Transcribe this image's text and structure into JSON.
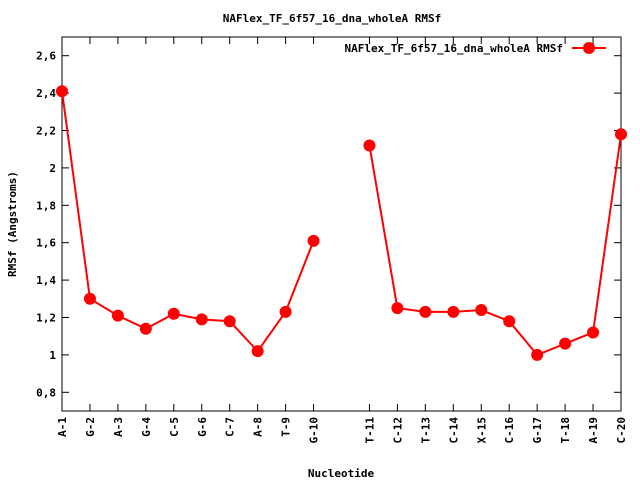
{
  "chart_data": {
    "type": "line",
    "title": "NAFlex_TF_6f57_16_dna_wholeA RMSf",
    "xlabel": "Nucleotide",
    "ylabel": "RMSf (Angstroms)",
    "ylim": [
      0.7,
      2.7
    ],
    "yticks": [
      "0,8",
      "1",
      "1,2",
      "1,4",
      "1,6",
      "1,8",
      "2",
      "2,2",
      "2,4",
      "2,6"
    ],
    "ytick_values": [
      0.8,
      1.0,
      1.2,
      1.4,
      1.6,
      1.8,
      2.0,
      2.2,
      2.4,
      2.6
    ],
    "grid": false,
    "legend": "top-right",
    "series_color": "#ff0000",
    "categories": [
      "A-1",
      "G-2",
      "A-3",
      "G-4",
      "C-5",
      "G-6",
      "C-7",
      "A-8",
      "T-9",
      "G-10",
      "T-11",
      "C-12",
      "T-13",
      "C-14",
      "X-15",
      "C-16",
      "G-17",
      "T-18",
      "A-19",
      "C-20"
    ],
    "x": [
      1,
      2,
      3,
      4,
      5,
      6,
      7,
      8,
      9,
      10,
      12,
      13,
      14,
      15,
      16,
      17,
      18,
      19,
      20,
      21
    ],
    "xlim": [
      1,
      21
    ],
    "series": [
      {
        "name": "NAFlex_TF_6f57_16_dna_wholeA RMSf",
        "values": [
          2.41,
          1.3,
          1.21,
          1.14,
          1.22,
          1.19,
          1.18,
          1.02,
          1.23,
          1.61,
          2.12,
          1.25,
          1.23,
          1.23,
          1.24,
          1.18,
          1.0,
          1.06,
          1.12,
          2.18
        ],
        "segments": [
          [
            0,
            9
          ],
          [
            10,
            19
          ]
        ]
      }
    ]
  }
}
